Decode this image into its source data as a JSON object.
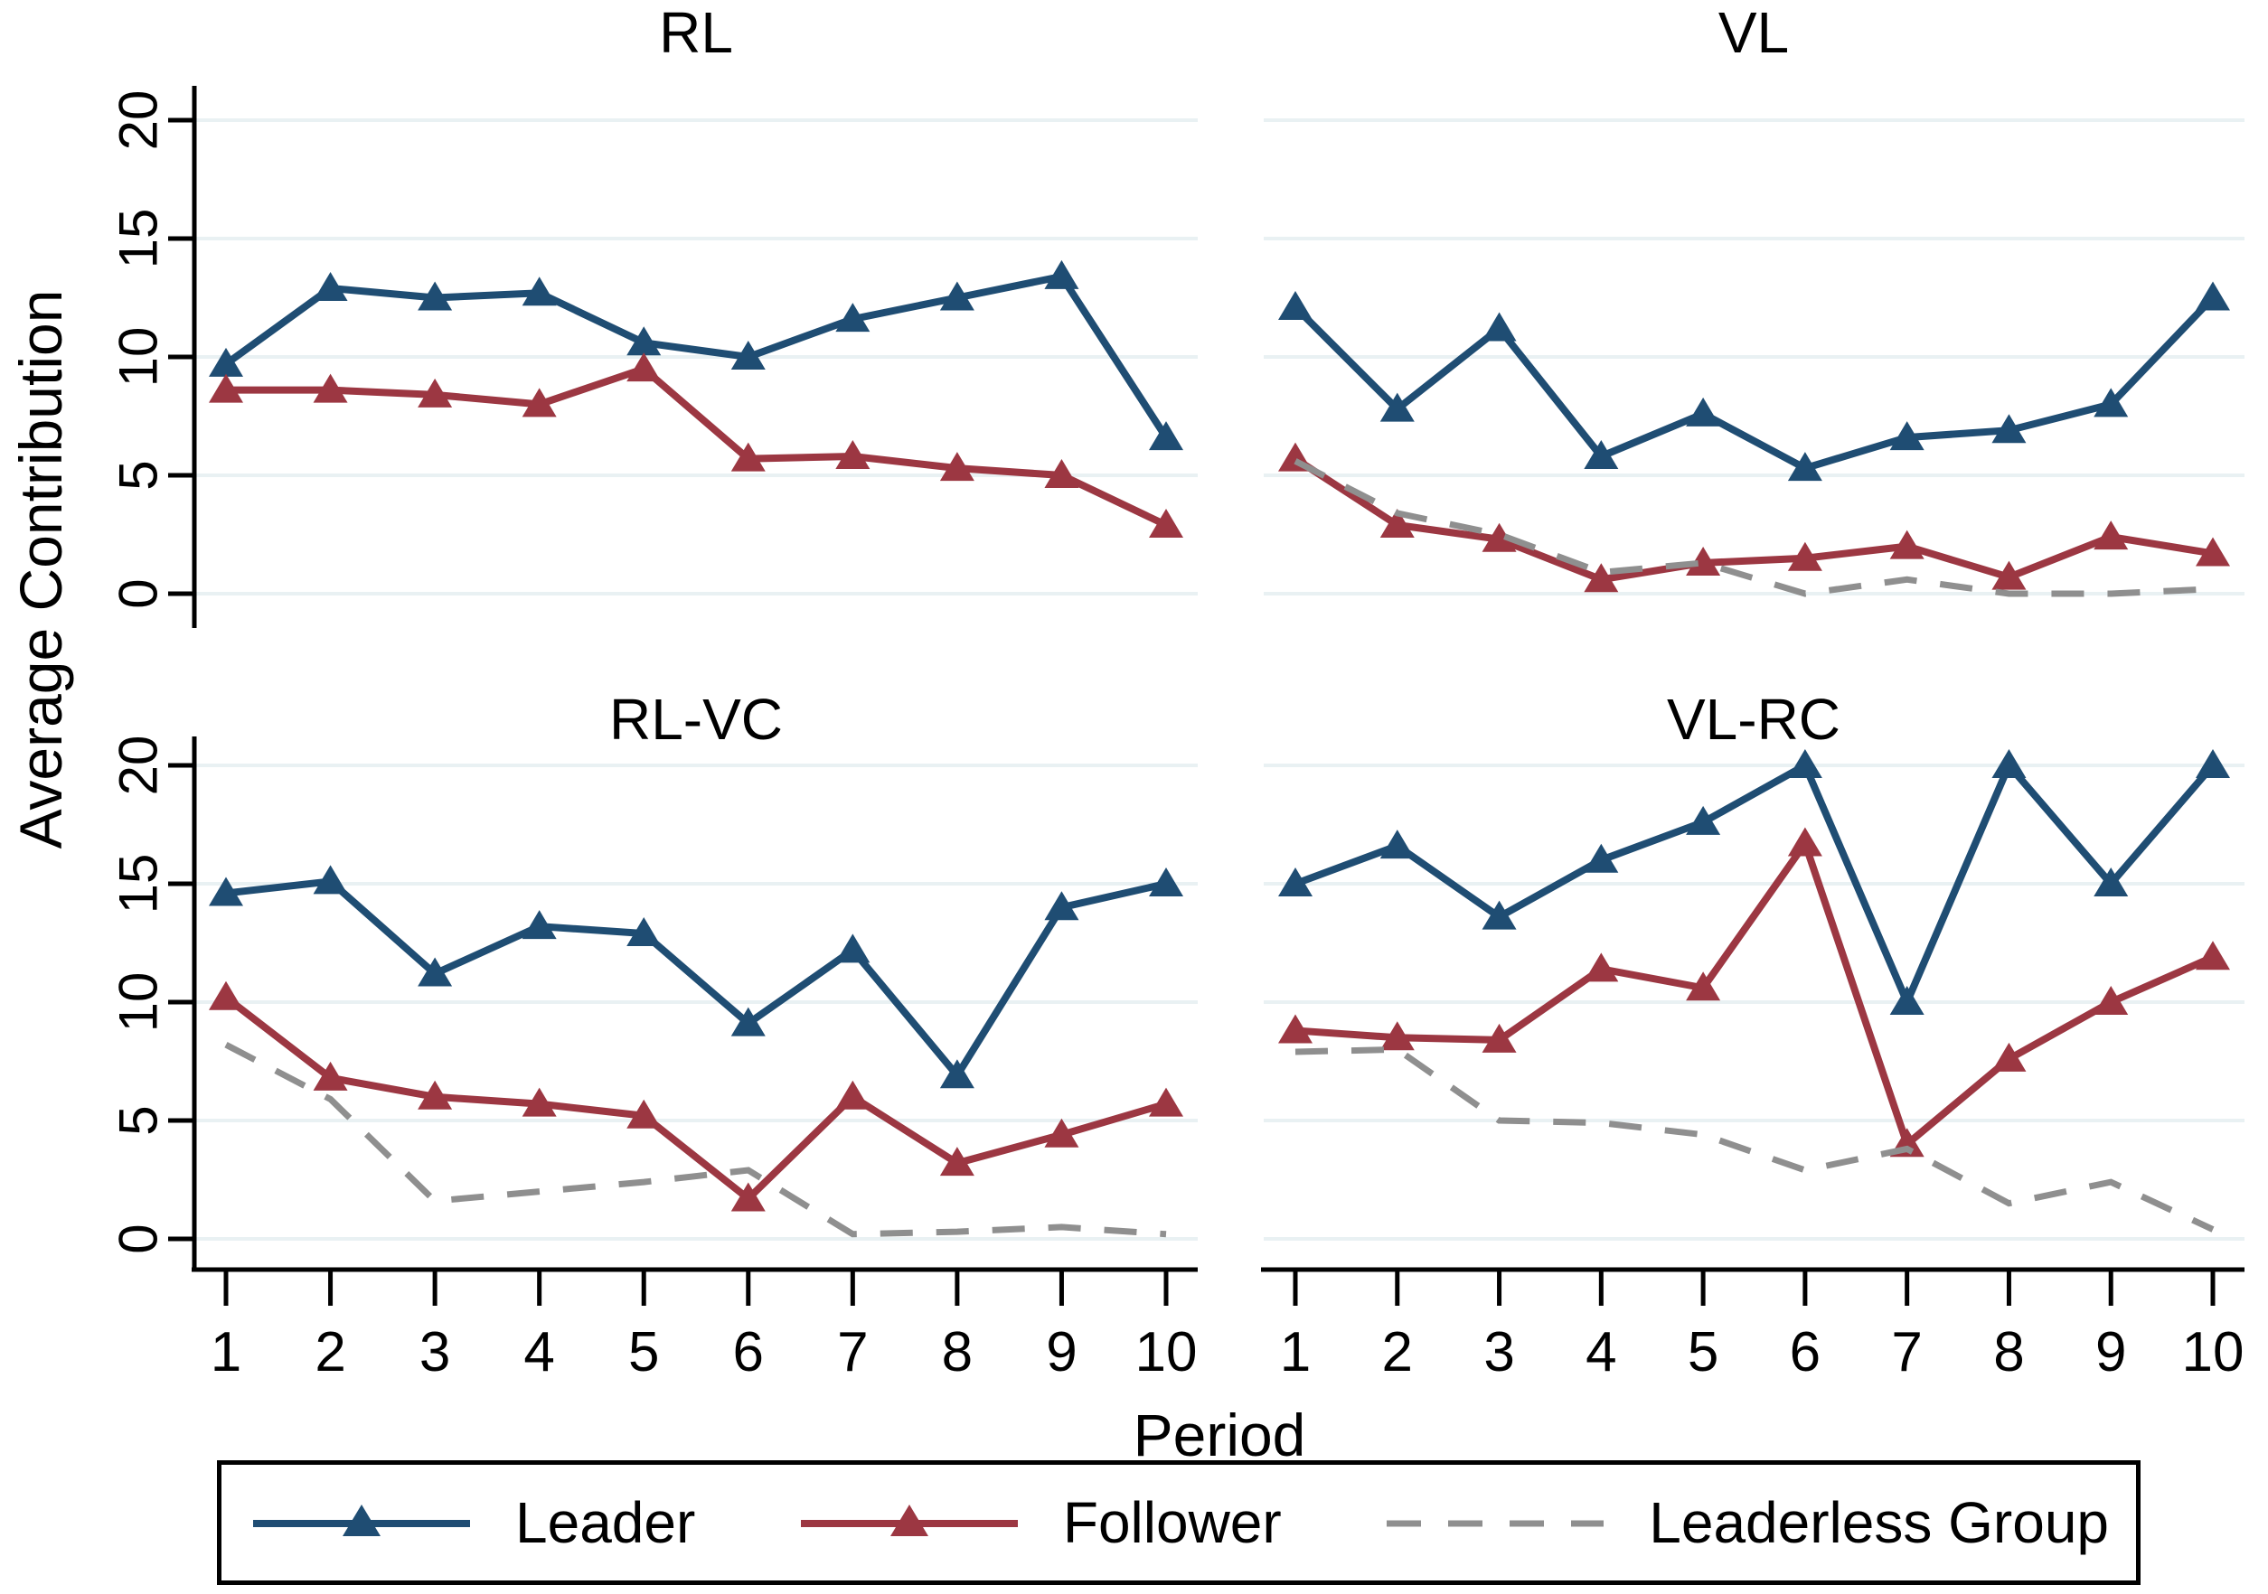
{
  "figure": {
    "kind": "2x2 panel line chart (Stata style)",
    "background": "#ffffff"
  },
  "colors": {
    "leader": "#1f4d73",
    "follower": "#9c3742",
    "leaderless": "#8f8f8f",
    "gridline": "#e9f1f3",
    "axis": "#000000",
    "text": "#000000",
    "legend_border": "#000000"
  },
  "legend": {
    "items": [
      {
        "label": "Leader",
        "marker": "triangle",
        "line": "solid",
        "color_key": "leader"
      },
      {
        "label": "Follower",
        "marker": "triangle",
        "line": "solid",
        "color_key": "follower"
      },
      {
        "label": "Leaderless Group",
        "marker": "none",
        "line": "dashed",
        "color_key": "leaderless"
      }
    ]
  },
  "chart_data": {
    "type": "line",
    "x": [
      1,
      2,
      3,
      4,
      5,
      6,
      7,
      8,
      9,
      10
    ],
    "xlabel": "Period",
    "ylabel": "Average Contribution",
    "ylim": [
      0,
      20
    ],
    "y_ticks": [
      0,
      5,
      10,
      15,
      20
    ],
    "grid": "horizontal",
    "legend_position": "bottom",
    "series_styles": [
      {
        "name": "Leader",
        "color_key": "leader",
        "marker": "triangle",
        "line": "solid"
      },
      {
        "name": "Follower",
        "color_key": "follower",
        "marker": "triangle",
        "line": "solid"
      },
      {
        "name": "Leaderless Group",
        "color_key": "leaderless",
        "marker": "none",
        "line": "dashed"
      }
    ],
    "panels": [
      {
        "title": "RL",
        "series": [
          {
            "name": "Leader",
            "values": [
              9.7,
              12.9,
              12.5,
              12.7,
              10.6,
              10.0,
              11.6,
              12.5,
              13.4,
              6.6
            ]
          },
          {
            "name": "Follower",
            "values": [
              8.6,
              8.6,
              8.4,
              8.0,
              9.5,
              5.7,
              5.8,
              5.3,
              5.0,
              2.9
            ]
          }
        ]
      },
      {
        "title": "VL",
        "series": [
          {
            "name": "Leader",
            "values": [
              12.1,
              7.8,
              11.2,
              5.8,
              7.6,
              5.3,
              6.6,
              6.9,
              8.0,
              12.5
            ]
          },
          {
            "name": "Follower",
            "values": [
              5.7,
              2.9,
              2.3,
              0.6,
              1.3,
              1.5,
              2.0,
              0.7,
              2.4,
              1.7
            ]
          },
          {
            "name": "Leaderless Group",
            "values": [
              5.6,
              3.4,
              2.5,
              0.9,
              1.3,
              0.0,
              0.6,
              0.0,
              0.0,
              0.2
            ]
          }
        ]
      },
      {
        "title": "RL-VC",
        "series": [
          {
            "name": "Leader",
            "values": [
              14.6,
              15.1,
              11.2,
              13.2,
              12.9,
              9.1,
              12.2,
              6.9,
              14.0,
              15.0
            ]
          },
          {
            "name": "Follower",
            "values": [
              10.2,
              6.8,
              6.0,
              5.7,
              5.2,
              1.7,
              6.0,
              3.2,
              4.4,
              5.7
            ]
          },
          {
            "name": "Leaderless Group",
            "values": [
              8.2,
              5.9,
              1.6,
              2.0,
              2.4,
              2.9,
              0.2,
              0.3,
              0.5,
              0.2
            ]
          }
        ]
      },
      {
        "title": "VL-RC",
        "series": [
          {
            "name": "Leader",
            "values": [
              15.0,
              16.6,
              13.6,
              16.0,
              17.6,
              20.0,
              10.0,
              20.0,
              15.0,
              20.0
            ]
          },
          {
            "name": "Follower",
            "values": [
              8.8,
              8.5,
              8.4,
              11.4,
              10.6,
              16.7,
              4.0,
              7.6,
              10.0,
              11.9
            ]
          },
          {
            "name": "Leaderless Group",
            "values": [
              7.9,
              8.0,
              5.0,
              4.9,
              4.4,
              2.9,
              3.8,
              1.5,
              2.4,
              0.4
            ]
          }
        ]
      }
    ]
  }
}
